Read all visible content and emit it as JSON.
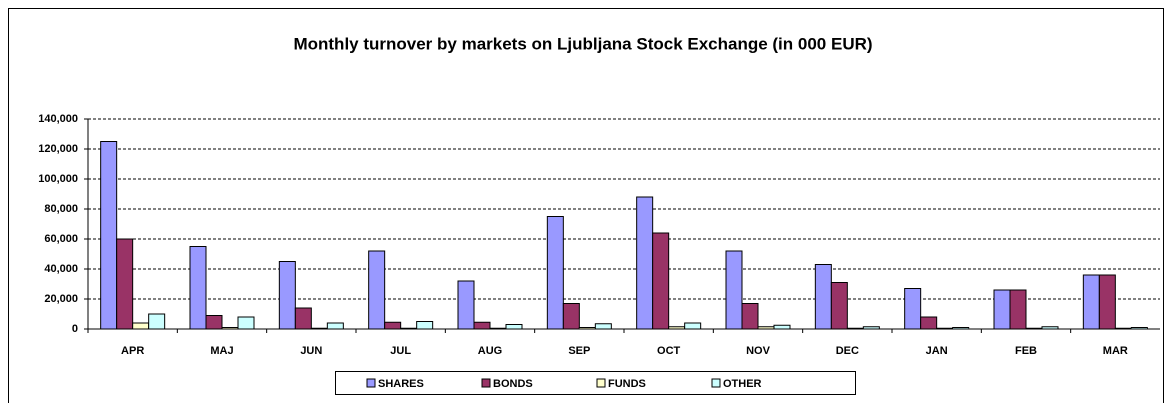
{
  "chart_data": {
    "type": "bar",
    "title": "Monthly turnover by markets on Ljubljana Stock Exchange (in 000 EUR)",
    "categories": [
      "APR",
      "MAJ",
      "JUN",
      "JUL",
      "AUG",
      "SEP",
      "OCT",
      "NOV",
      "DEC",
      "JAN",
      "FEB",
      "MAR"
    ],
    "series": [
      {
        "name": "SHARES",
        "color": "#9999ff",
        "values": [
          125000,
          55000,
          45000,
          52000,
          32000,
          75000,
          88000,
          52000,
          43000,
          27000,
          26000,
          36000
        ]
      },
      {
        "name": "BONDS",
        "color": "#993366",
        "values": [
          60000,
          9000,
          14000,
          4500,
          4500,
          17000,
          64000,
          17000,
          31000,
          8000,
          26000,
          36000
        ]
      },
      {
        "name": "FUNDS",
        "color": "#ffffcc",
        "values": [
          4000,
          1000,
          500,
          500,
          500,
          1000,
          1500,
          1500,
          500,
          500,
          500,
          500
        ]
      },
      {
        "name": "OTHER",
        "color": "#ccffff",
        "values": [
          10000,
          8000,
          4000,
          5000,
          3000,
          3500,
          4000,
          2500,
          1500,
          1000,
          1500,
          1000
        ]
      }
    ],
    "ylim": [
      0,
      140000
    ],
    "yticks": [
      0,
      {
        "value": 20000,
        "label": "20,000"
      },
      {
        "value": 40000,
        "label": "40,000"
      },
      {
        "value": 60000,
        "label": "60,000"
      },
      {
        "value": 80000,
        "label": "80,000"
      },
      {
        "value": 100000,
        "label": "100,000"
      },
      {
        "value": 120000,
        "label": "120,000"
      },
      {
        "value": 140000,
        "label": "140,000"
      }
    ],
    "grid": true,
    "legend": "bottom"
  }
}
